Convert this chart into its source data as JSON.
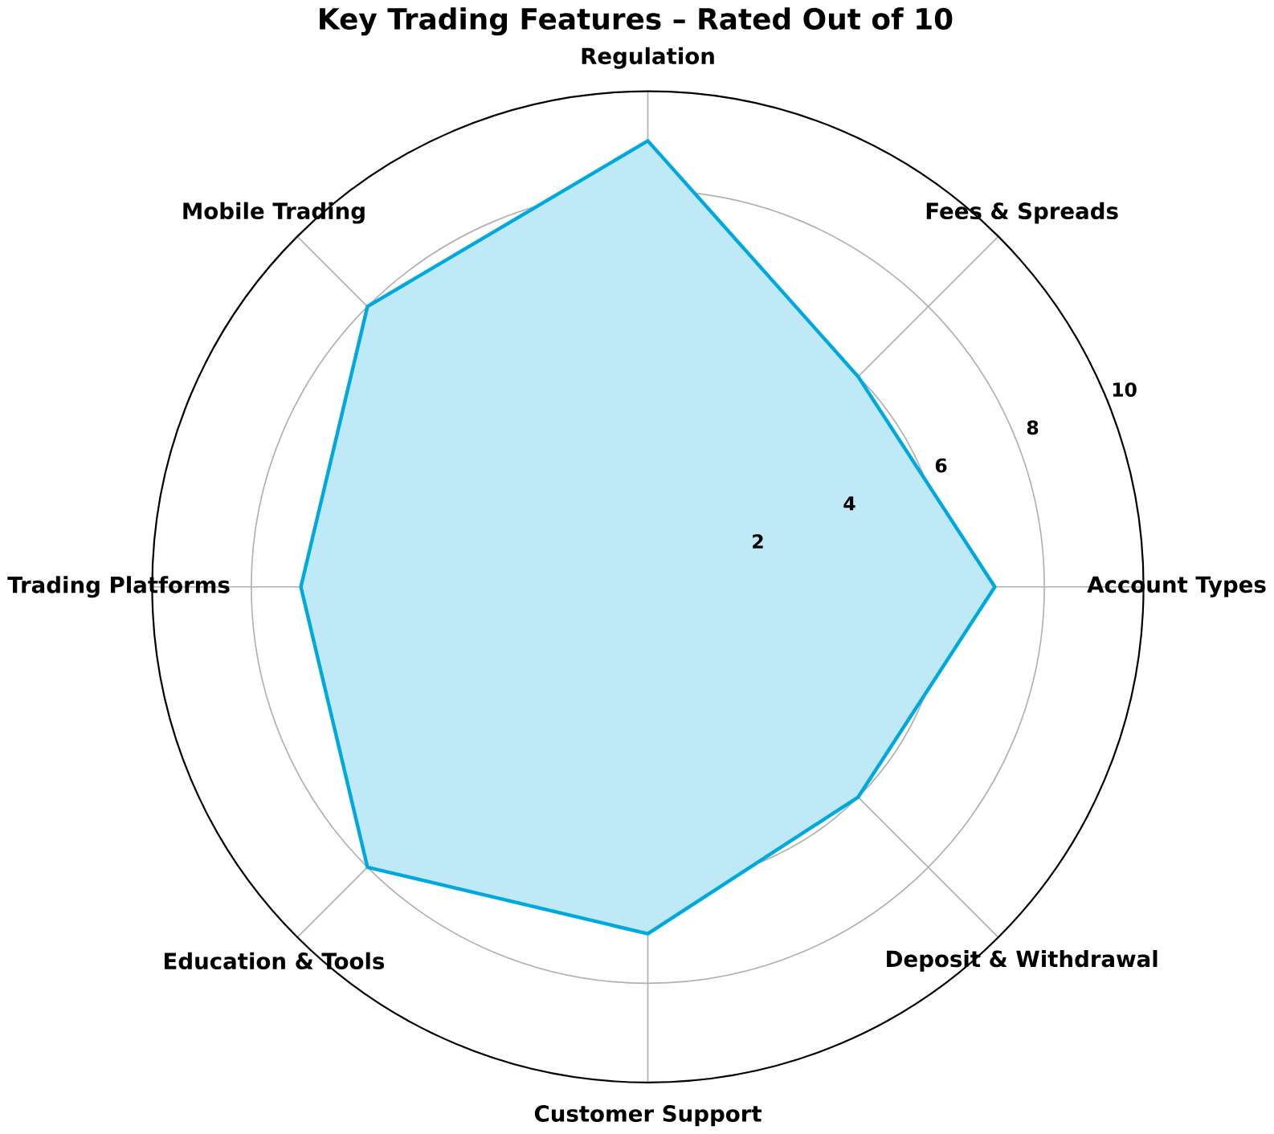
{
  "chart_data": {
    "type": "radar",
    "title": "Key Trading Features – Rated Out of 10",
    "categories": [
      "Regulation",
      "Fees & Spreads",
      "Account Types",
      "Deposit & Withdrawal",
      "Customer Support",
      "Education & Tools",
      "Trading Platforms",
      "Mobile Trading"
    ],
    "series": [
      {
        "color": "#00a8e0",
        "values": [
          9,
          6,
          7,
          6,
          7,
          8,
          7,
          8
        ]
      }
    ],
    "ylim": [
      0,
      10
    ],
    "yticks": [
      2,
      4,
      6,
      8,
      10
    ],
    "grid": true
  }
}
